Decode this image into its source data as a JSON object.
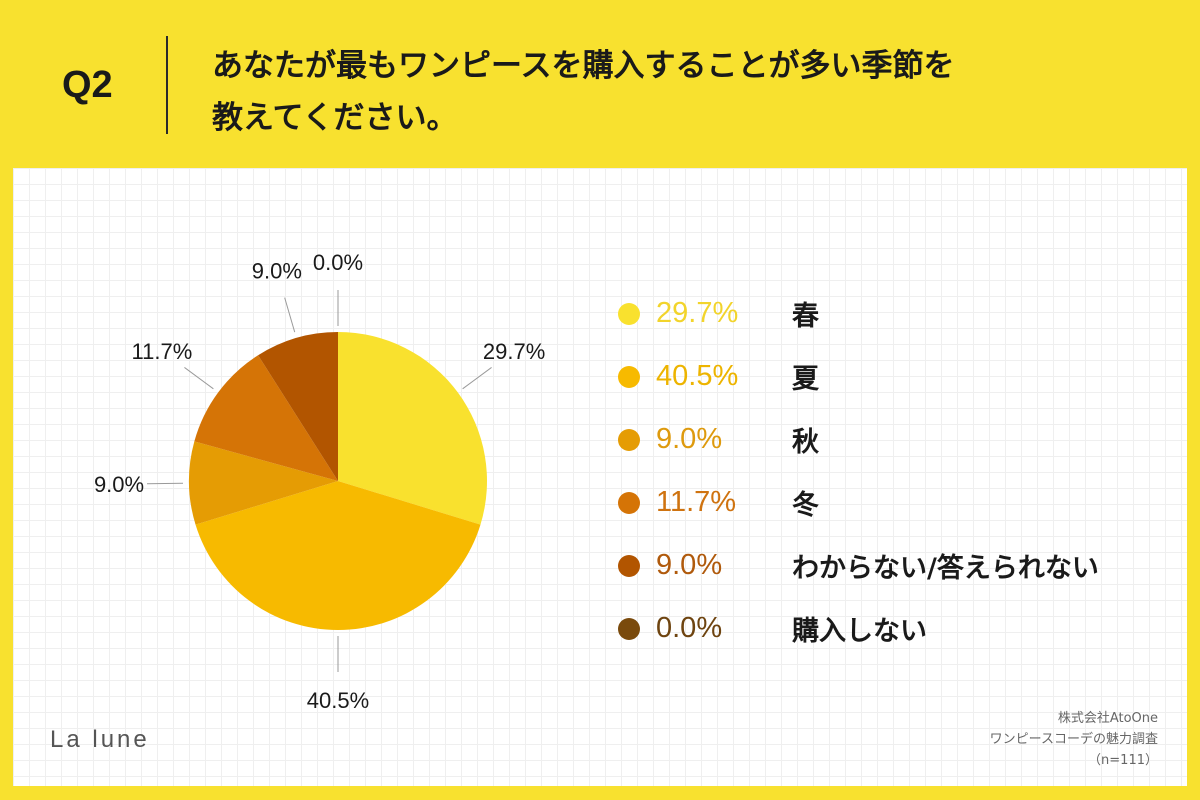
{
  "header": {
    "question_number": "Q2",
    "question_line1": "あなたが最もワンピースを購入することが多い季節を",
    "question_line2": "教えてください。"
  },
  "chart_data": {
    "type": "pie",
    "categories": [
      "春",
      "夏",
      "秋",
      "冬",
      "わからない/答えられない",
      "購入しない"
    ],
    "values": [
      29.7,
      40.5,
      9.0,
      11.7,
      9.0,
      0.0
    ],
    "value_labels": [
      "29.7%",
      "40.5%",
      "9.0%",
      "11.7%",
      "9.0%",
      "0.0%"
    ],
    "colors": [
      "#F9E12E",
      "#F7BA00",
      "#E59C04",
      "#D57406",
      "#B25500",
      "#7A4A0C"
    ],
    "legend_text_colors": [
      "#F2D42C",
      "#EDB400",
      "#DE9A0E",
      "#CF7310",
      "#B05A0C",
      "#6E4410"
    ],
    "legend_placement": "right",
    "start": "top",
    "direction": "clockwise"
  },
  "footer": {
    "logo": "La lune",
    "source_line1": "株式会社AtoOne",
    "source_line2": "ワンピースコーデの魅力調査",
    "source_line3": "（n=111）"
  }
}
